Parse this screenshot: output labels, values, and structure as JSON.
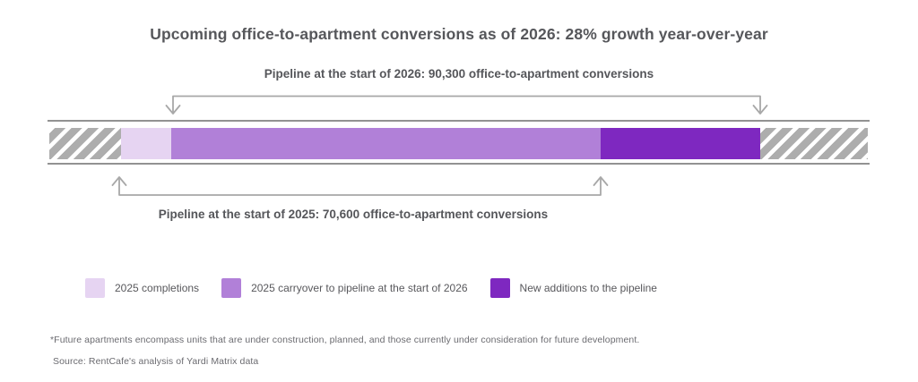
{
  "title": "Upcoming office-to-apartment conversions as of 2026: 28% growth year-over-year",
  "annotations": {
    "pipeline_2026": "Pipeline at the start of 2026: 90,300 office-to-apartment conversions",
    "pipeline_2025": "Pipeline at the start of 2025: 70,600 office-to-apartment conversions"
  },
  "chart_data": {
    "type": "bar",
    "variant": "horizontal-stacked-pipeline",
    "title": "Upcoming office-to-apartment conversions as of 2026: 28% growth year-over-year",
    "growth_year_over_year_pct": 28,
    "pipeline_start_2026_conversions": 90300,
    "pipeline_start_2025_conversions": 70600,
    "segments": [
      {
        "name": "left-hatched-outside-pipeline",
        "kind": "hatched",
        "color": "#adadad",
        "width_pct": 8.76
      },
      {
        "name": "2025 completions",
        "kind": "solid",
        "color": "#e6d4f2",
        "width_pct": 6.13
      },
      {
        "name": "2025 carryover to pipeline at the start of 2026",
        "kind": "solid",
        "color": "#b180d8",
        "width_pct": 52.46
      },
      {
        "name": "New additions to the pipeline",
        "kind": "solid",
        "color": "#7e28c0",
        "width_pct": 19.5
      },
      {
        "name": "right-hatched-outside-pipeline",
        "kind": "hatched",
        "color": "#adadad",
        "width_pct": 13.15
      }
    ],
    "brackets": [
      {
        "position": "above",
        "label": "Pipeline at the start of 2026: 90,300 office-to-apartment conversions",
        "spans": [
          "2025 carryover to pipeline at the start of 2026",
          "New additions to the pipeline"
        ]
      },
      {
        "position": "below",
        "label": "Pipeline at the start of 2025: 70,600 office-to-apartment conversions",
        "spans": [
          "2025 completions",
          "2025 carryover to pipeline at the start of 2026"
        ]
      }
    ],
    "legend_position": "bottom-left",
    "grid": false
  },
  "legend": {
    "items": [
      {
        "label": "2025 completions",
        "color": "#e6d4f2"
      },
      {
        "label": "2025 carryover to pipeline at the start of 2026",
        "color": "#b180d8"
      },
      {
        "label": "New additions to the pipeline",
        "color": "#7e28c0"
      }
    ]
  },
  "footnote": "*Future apartments encompass units that are under construction, planned, and those currently under consideration for future development.",
  "source": "Source: RentCafe's analysis of Yardi Matrix data",
  "colors": {
    "light_purple": "#e6d4f2",
    "medium_purple": "#b180d8",
    "dark_purple": "#7e28c0",
    "hatch_gray": "#adadad",
    "rail_gray": "#929292",
    "bracket_gray": "#a8a8a8",
    "text_dark": "#55565a",
    "text_muted": "#6b6b70"
  }
}
